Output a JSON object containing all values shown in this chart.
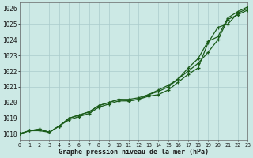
{
  "hours": [
    0,
    1,
    2,
    3,
    4,
    5,
    6,
    7,
    8,
    9,
    10,
    11,
    12,
    13,
    14,
    15,
    16,
    17,
    18,
    19,
    20,
    21,
    22,
    23
  ],
  "line1": [
    1018.0,
    1018.2,
    1018.2,
    1018.1,
    1018.5,
    1018.9,
    1019.1,
    1019.3,
    1019.7,
    1019.9,
    1020.1,
    1020.1,
    1020.2,
    1020.4,
    1020.5,
    1020.8,
    1021.3,
    1021.8,
    1022.2,
    1023.8,
    1024.8,
    1025.0,
    1025.7,
    1026.0
  ],
  "line2": [
    1018.0,
    1018.2,
    1018.3,
    1018.1,
    1018.5,
    1019.0,
    1019.2,
    1019.4,
    1019.8,
    1020.0,
    1020.2,
    1020.1,
    1020.2,
    1020.5,
    1020.7,
    1021.0,
    1021.5,
    1022.0,
    1022.5,
    1023.2,
    1024.0,
    1025.3,
    1025.6,
    1025.9
  ],
  "line3": [
    1018.0,
    1018.2,
    1018.3,
    1018.1,
    1018.5,
    1019.0,
    1019.2,
    1019.4,
    1019.8,
    1020.0,
    1020.2,
    1020.2,
    1020.3,
    1020.5,
    1020.8,
    1021.1,
    1021.5,
    1022.2,
    1022.8,
    1023.9,
    1024.2,
    1025.4,
    1025.8,
    1026.1
  ],
  "line_color": "#1a5c1a",
  "bg_color": "#cce9e5",
  "grid_color": "#aacccc",
  "ylabel_ticks": [
    1018,
    1019,
    1020,
    1021,
    1022,
    1023,
    1024,
    1025,
    1026
  ],
  "xlabel": "Graphe pression niveau de la mer (hPa)",
  "ylim": [
    1017.6,
    1026.4
  ],
  "xlim": [
    0,
    23
  ]
}
